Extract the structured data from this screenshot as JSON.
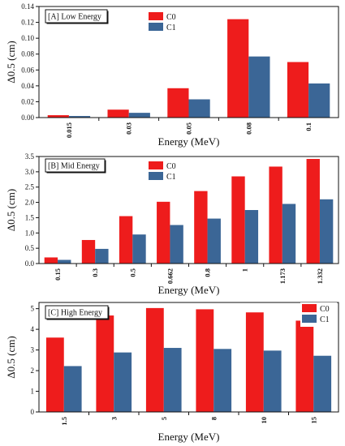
{
  "colors": {
    "C0": "#ee1c1c",
    "C1": "#3b6696",
    "axis": "#111111"
  },
  "chart_data": [
    {
      "type": "bar",
      "title": "[A] Low Energy",
      "xlabel": "Energy (MeV)",
      "ylabel": "Δ0.5 (cm)",
      "ylim": [
        0,
        0.14
      ],
      "yticks": [
        "0.00",
        "0.02",
        "0.04",
        "0.06",
        "0.08",
        "0.10",
        "0.12",
        "0.14"
      ],
      "categories": [
        "0.015",
        "0.03",
        "0.05",
        "0.08",
        "0.1"
      ],
      "legend_position": "top-center",
      "series": [
        {
          "name": "C0",
          "values": [
            0.003,
            0.01,
            0.037,
            0.124,
            0.07
          ]
        },
        {
          "name": "C1",
          "values": [
            0.002,
            0.006,
            0.023,
            0.077,
            0.043
          ]
        }
      ]
    },
    {
      "type": "bar",
      "title": "[B] Mid Energy",
      "xlabel": "Energy (MeV)",
      "ylabel": "Δ0.5 (cm)",
      "ylim": [
        0,
        3.5
      ],
      "yticks": [
        "0.0",
        "0.5",
        "1.0",
        "1.5",
        "2.0",
        "2.5",
        "3.0",
        "3.5"
      ],
      "categories": [
        "0.15",
        "0.3",
        "0.5",
        "0.662",
        "0.8",
        "1",
        "1.173",
        "1.332"
      ],
      "legend_position": "top-center",
      "series": [
        {
          "name": "C0",
          "values": [
            0.2,
            0.77,
            1.55,
            2.02,
            2.37,
            2.85,
            3.17,
            3.42
          ]
        },
        {
          "name": "C1",
          "values": [
            0.12,
            0.48,
            0.95,
            1.26,
            1.47,
            1.75,
            1.95,
            2.1
          ]
        }
      ]
    },
    {
      "type": "bar",
      "title": "[C] High Energy",
      "xlabel": "Energy (MeV)",
      "ylabel": "Δ0.5 (cm)",
      "ylim": [
        0,
        5.3
      ],
      "yticks": [
        "0",
        "1",
        "2",
        "3",
        "4",
        "5"
      ],
      "categories": [
        "1.5",
        "3",
        "5",
        "8",
        "10",
        "15"
      ],
      "legend_position": "top-right",
      "series": [
        {
          "name": "C0",
          "values": [
            3.6,
            4.67,
            5.03,
            4.97,
            4.82,
            4.42
          ]
        },
        {
          "name": "C1",
          "values": [
            2.22,
            2.88,
            3.1,
            3.05,
            2.97,
            2.72
          ]
        }
      ]
    }
  ]
}
